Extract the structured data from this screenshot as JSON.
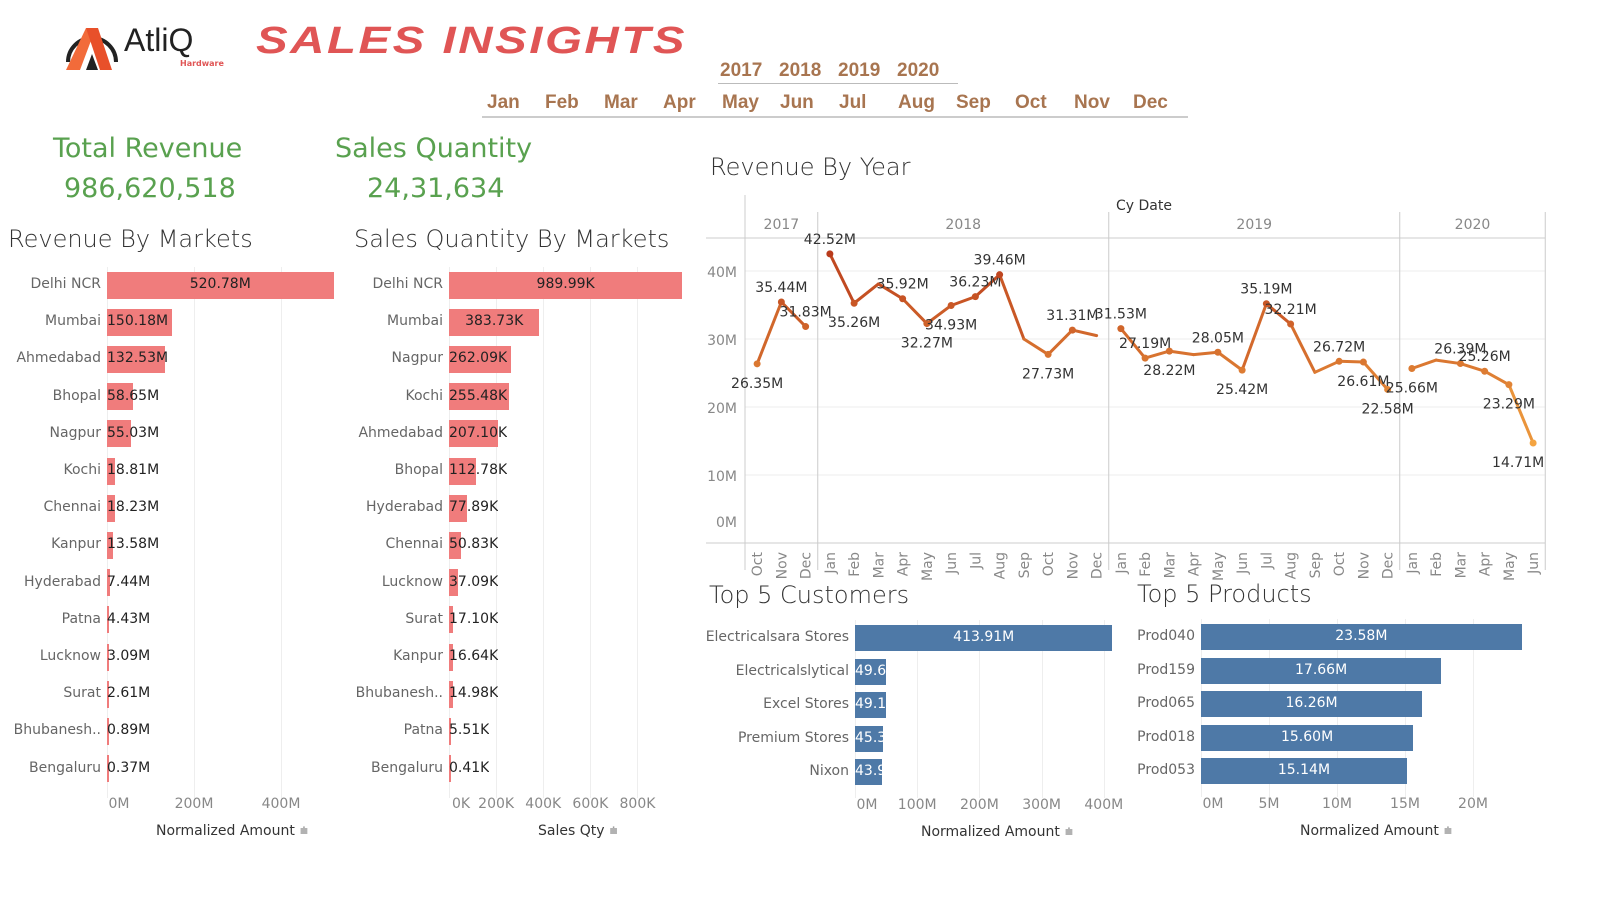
{
  "header": {
    "logo_text": "AtliQ",
    "logo_sub": "Hardware",
    "title": "SALES INSIGHTS"
  },
  "filters": {
    "years": [
      "2017",
      "2018",
      "2019",
      "2020"
    ],
    "months": [
      "Jan",
      "Feb",
      "Mar",
      "Apr",
      "May",
      "Jun",
      "Jul",
      "Aug",
      "Sep",
      "Oct",
      "Nov",
      "Dec"
    ]
  },
  "kpis": {
    "revenue_label": "Total Revenue",
    "revenue_value": "986,620,518",
    "qty_label": "Sales Quantity",
    "qty_value": "24,31,634"
  },
  "colors": {
    "market_bar": "#f07c7c",
    "blue_bar": "#4e79a7",
    "line_low": "#f5a742",
    "line_high": "#b8391b",
    "kpi": "#59a14f",
    "title_red": "#e05555",
    "filter": "#a87550"
  },
  "revenue_by_markets": {
    "title": "Revenue By Markets",
    "axis_title": "Normalized Amount",
    "ticks": [
      "0M",
      "200M",
      "400M"
    ],
    "tick_values": [
      0,
      200,
      400
    ],
    "categories": [
      "Delhi NCR",
      "Mumbai",
      "Ahmedabad",
      "Bhopal",
      "Nagpur",
      "Kochi",
      "Chennai",
      "Kanpur",
      "Hyderabad",
      "Patna",
      "Lucknow",
      "Surat",
      "Bhubanesh..",
      "Bengaluru"
    ],
    "values": [
      520.78,
      150.18,
      132.53,
      58.65,
      55.03,
      18.81,
      18.23,
      13.58,
      7.44,
      4.43,
      3.09,
      2.61,
      0.89,
      0.37
    ],
    "labels": [
      "520.78M",
      "150.18M",
      "132.53M",
      "58.65M",
      "55.03M",
      "18.81M",
      "18.23M",
      "13.58M",
      "7.44M",
      "4.43M",
      "3.09M",
      "2.61M",
      "0.89M",
      "0.37M"
    ]
  },
  "qty_by_markets": {
    "title": "Sales Quantity By Markets",
    "axis_title": "Sales Qty",
    "ticks": [
      "0K",
      "200K",
      "400K",
      "600K",
      "800K"
    ],
    "tick_values": [
      0,
      200,
      400,
      600,
      800
    ],
    "categories": [
      "Delhi NCR",
      "Mumbai",
      "Nagpur",
      "Kochi",
      "Ahmedabad",
      "Bhopal",
      "Hyderabad",
      "Chennai",
      "Lucknow",
      "Surat",
      "Kanpur",
      "Bhubanesh..",
      "Patna",
      "Bengaluru"
    ],
    "values": [
      989.99,
      383.73,
      262.09,
      255.48,
      207.1,
      112.78,
      77.89,
      50.83,
      37.09,
      17.1,
      16.64,
      14.98,
      5.51,
      0.41
    ],
    "labels": [
      "989.99K",
      "383.73K",
      "262.09K",
      "255.48K",
      "207.10K",
      "112.78K",
      "77.89K",
      "50.83K",
      "37.09K",
      "17.10K",
      "16.64K",
      "14.98K",
      "5.51K",
      "0.41K"
    ]
  },
  "top_customers": {
    "title": "Top 5 Customers",
    "axis_title": "Normalized Amount",
    "ticks": [
      "0M",
      "100M",
      "200M",
      "300M",
      "400M"
    ],
    "tick_values": [
      0,
      100,
      200,
      300,
      400
    ],
    "categories": [
      "Electricalsara Stores",
      "Electricalslytical",
      "Excel Stores",
      "Premium Stores",
      "Nixon"
    ],
    "values": [
      413.91,
      49.6,
      49.1,
      45.3,
      43.9
    ],
    "labels": [
      "413.91M",
      "49.6",
      "49.1",
      "45.3",
      "43.9"
    ]
  },
  "top_products": {
    "title": "Top 5 Products",
    "axis_title": "Normalized Amount",
    "ticks": [
      "0M",
      "5M",
      "10M",
      "15M",
      "20M"
    ],
    "tick_values": [
      0,
      5,
      10,
      15,
      20
    ],
    "categories": [
      "Prod040",
      "Prod159",
      "Prod065",
      "Prod018",
      "Prod053"
    ],
    "values": [
      23.58,
      17.66,
      16.26,
      15.6,
      15.14
    ],
    "labels": [
      "23.58M",
      "17.66M",
      "16.26M",
      "15.60M",
      "15.14M"
    ]
  },
  "chart_data": {
    "type": "line",
    "title": "Revenue By Year",
    "column_header": "Cy Date",
    "ylim": [
      0,
      45
    ],
    "yticks": [
      "0M",
      "10M",
      "20M",
      "30M",
      "40M"
    ],
    "ytick_values": [
      0,
      10,
      20,
      30,
      40
    ],
    "years": [
      {
        "year": "2017",
        "months": [
          "Oct",
          "Nov",
          "Dec"
        ]
      },
      {
        "year": "2018",
        "months": [
          "Jan",
          "Feb",
          "Mar",
          "Apr",
          "May",
          "Jun",
          "Jul",
          "Aug",
          "Sep",
          "Oct",
          "Nov",
          "Dec"
        ]
      },
      {
        "year": "2019",
        "months": [
          "Jan",
          "Feb",
          "Mar",
          "Apr",
          "May",
          "Jun",
          "Jul",
          "Aug",
          "Sep",
          "Oct",
          "Nov",
          "Dec"
        ]
      },
      {
        "year": "2020",
        "months": [
          "Jan",
          "Feb",
          "Mar",
          "Apr",
          "May",
          "Jun"
        ]
      }
    ],
    "values_millions": [
      26.35,
      35.44,
      31.83,
      42.52,
      35.26,
      38.1,
      35.92,
      32.27,
      34.93,
      36.23,
      39.46,
      30.0,
      27.73,
      31.31,
      30.5,
      31.53,
      27.19,
      28.22,
      27.7,
      28.05,
      25.42,
      35.19,
      32.21,
      25.1,
      26.72,
      26.61,
      22.58,
      25.66,
      26.9,
      26.39,
      25.26,
      23.29,
      14.71
    ],
    "labels": [
      "26.35M",
      "35.44M",
      "31.83M",
      "42.52M",
      "35.26M",
      null,
      "35.92M",
      "32.27M",
      "34.93M",
      "36.23M",
      "39.46M",
      null,
      "27.73M",
      "31.31M",
      null,
      "31.53M",
      "27.19M",
      "28.22M",
      null,
      "28.05M",
      "25.42M",
      "35.19M",
      "32.21M",
      null,
      "26.72M",
      "26.61M",
      "22.58M",
      "25.66M",
      null,
      "26.39M",
      "25.26M",
      "23.29M",
      "14.71M"
    ]
  }
}
